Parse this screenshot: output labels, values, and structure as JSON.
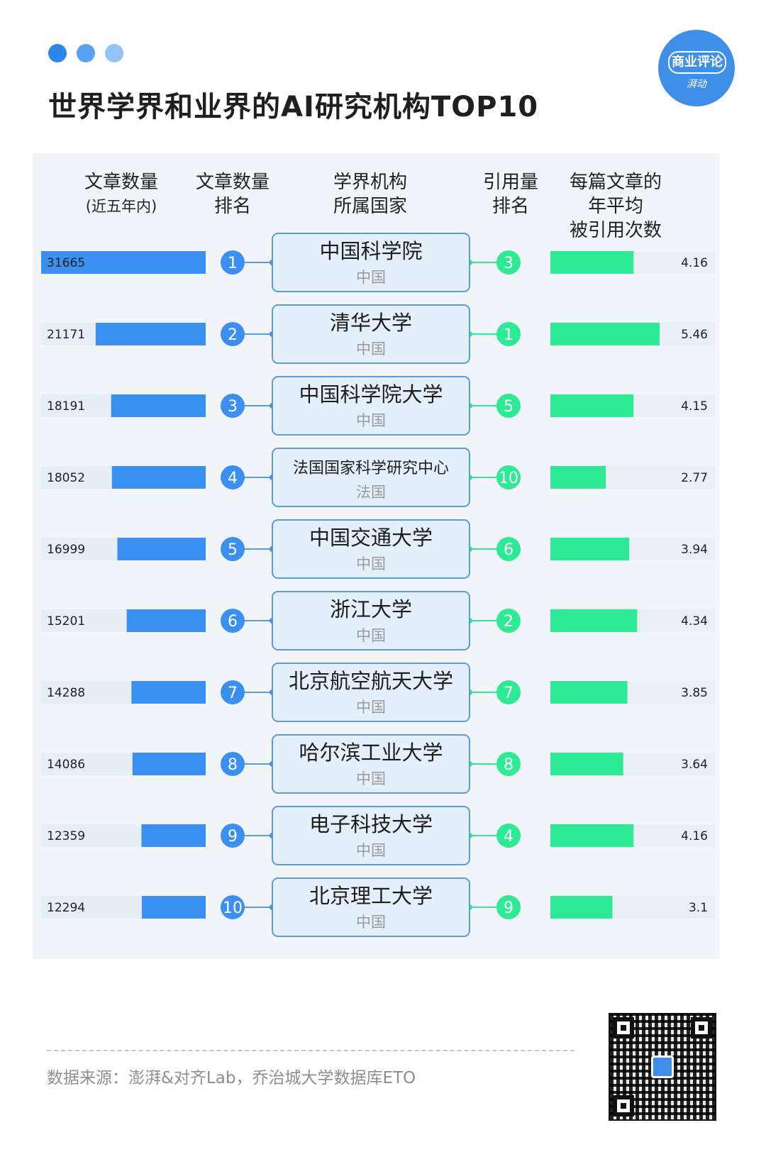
{
  "colors": {
    "dot1": "#2d86ea",
    "dot2": "#5aa2f0",
    "dot3": "#93c3f5",
    "bar_articles": "#3a8ff0",
    "bar_citations": "#2eea95",
    "rank_circle_blue": "#3a8ff0",
    "rank_circle_green": "#2eea95",
    "card_fill": "#e3f0fb",
    "card_border": "#5c9bd6"
  },
  "title": "世界学界和业界的AI研究机构TOP10",
  "logo": {
    "line1": "商业评论",
    "line2": "湃动"
  },
  "headers": {
    "articles": {
      "line1": "文章数量",
      "line2": "(近五年内)"
    },
    "article_rank": {
      "line1": "文章数量",
      "line2": "排名"
    },
    "institution": {
      "line1": "学界机构",
      "line2": "所属国家"
    },
    "citation_rank": {
      "line1": "引用量",
      "line2": "排名"
    },
    "citations": {
      "line1": "每篇文章的",
      "line2": "年平均",
      "line3": "被引用次数"
    }
  },
  "chart_data": {
    "type": "table",
    "rows": [
      {
        "articles": 31665,
        "article_rank": "1",
        "institution": "中国科学院",
        "country": "中国",
        "citation_rank": "3",
        "citations": 4.16
      },
      {
        "articles": 21171,
        "article_rank": "2",
        "institution": "清华大学",
        "country": "中国",
        "citation_rank": "1",
        "citations": 5.46
      },
      {
        "articles": 18191,
        "article_rank": "3",
        "institution": "中国科学院大学",
        "country": "中国",
        "citation_rank": "5",
        "citations": 4.15
      },
      {
        "articles": 18052,
        "article_rank": "4",
        "institution": "法国国家科学研究中心",
        "country": "法国",
        "citation_rank": "10",
        "citations": 2.77
      },
      {
        "articles": 16999,
        "article_rank": "5",
        "institution": "中国交通大学",
        "country": "中国",
        "citation_rank": "6",
        "citations": 3.94
      },
      {
        "articles": 15201,
        "article_rank": "6",
        "institution": "浙江大学",
        "country": "中国",
        "citation_rank": "2",
        "citations": 4.34
      },
      {
        "articles": 14288,
        "article_rank": "7",
        "institution": "北京航空航天大学",
        "country": "中国",
        "citation_rank": "7",
        "citations": 3.85
      },
      {
        "articles": 14086,
        "article_rank": "8",
        "institution": "哈尔滨工业大学",
        "country": "中国",
        "citation_rank": "8",
        "citations": 3.64
      },
      {
        "articles": 12359,
        "article_rank": "9",
        "institution": "电子科技大学",
        "country": "中国",
        "citation_rank": "4",
        "citations": 4.16
      },
      {
        "articles": 12294,
        "article_rank": "10",
        "institution": "北京理工大学",
        "country": "中国",
        "citation_rank": "9",
        "citations": 3.1
      }
    ],
    "articles_max": 31665,
    "citations_max": 5.46
  },
  "footer": {
    "source": "数据来源：澎湃&对齐Lab，乔治城大学数据库ETO"
  }
}
